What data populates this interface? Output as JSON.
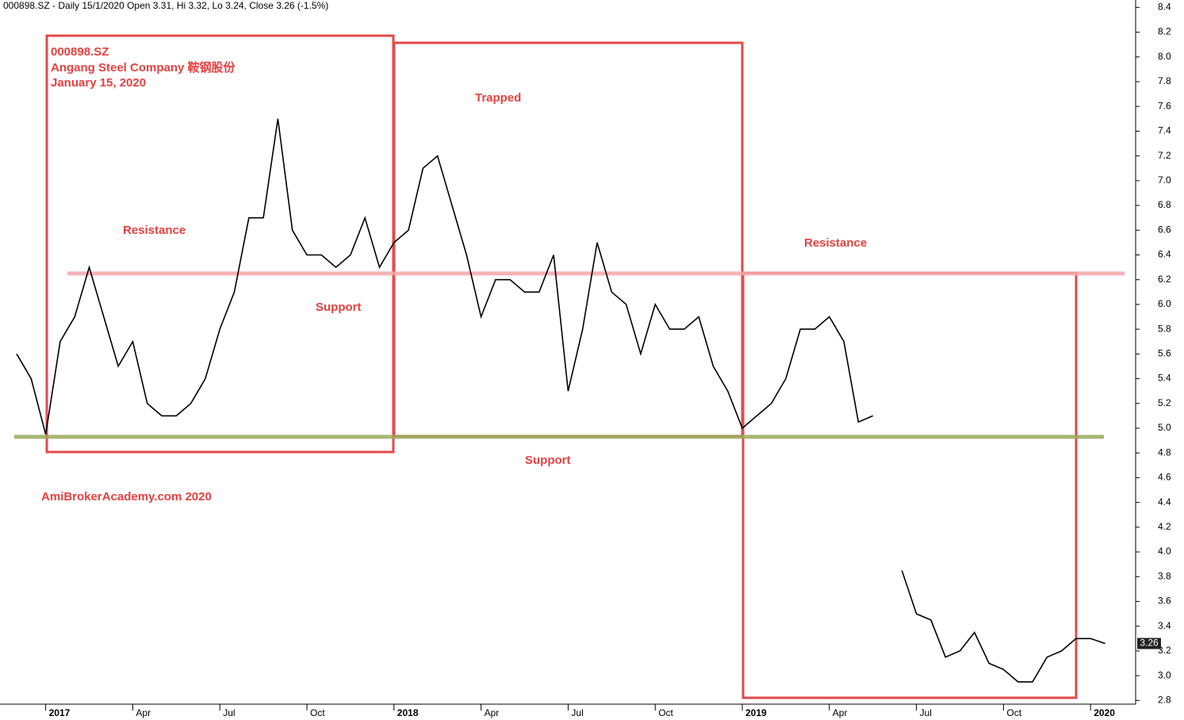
{
  "chart_data": {
    "type": "line",
    "header": "000898.SZ - Daily 15/1/2020 Open 3.31, Hi 3.32, Lo 3.24, Close 3.26 (-1.5%)",
    "annotations": {
      "symbol": "000898.SZ",
      "company": "Angang Steel Company 鞍钢股份",
      "date": "January 15, 2020",
      "resistance_left": "Resistance",
      "support_left": "Support",
      "trapped": "Trapped",
      "support_mid": "Support",
      "resistance_right": "Resistance",
      "watermark": "AmiBrokerAcademy.com   2020"
    },
    "categories": [
      null,
      null,
      "2017",
      null,
      null,
      null,
      null,
      null,
      "Apr",
      null,
      null,
      null,
      null,
      null,
      "Jul",
      null,
      null,
      null,
      null,
      null,
      "Oct",
      null,
      null,
      null,
      null,
      null,
      "2018",
      null,
      null,
      null,
      null,
      null,
      "Apr",
      null,
      null,
      null,
      null,
      null,
      "Jul",
      null,
      null,
      null,
      null,
      null,
      "Oct",
      null,
      null,
      null,
      null,
      null,
      "2019",
      null,
      null,
      null,
      null,
      null,
      "Apr",
      null,
      null,
      null,
      null,
      null,
      "Jul",
      null,
      null,
      null,
      null,
      null,
      "Oct",
      null,
      null,
      null,
      null,
      null,
      "2020",
      null
    ],
    "values": [
      5.6,
      5.4,
      4.95,
      5.7,
      5.9,
      6.3,
      5.9,
      5.5,
      5.7,
      5.2,
      5.1,
      5.1,
      5.2,
      5.4,
      5.8,
      6.1,
      6.7,
      6.7,
      7.5,
      6.6,
      6.4,
      6.4,
      6.3,
      6.4,
      6.7,
      6.3,
      6.5,
      6.6,
      7.1,
      7.2,
      6.8,
      6.4,
      5.9,
      6.2,
      6.2,
      6.1,
      6.1,
      6.4,
      5.3,
      5.8,
      6.5,
      6.1,
      6.0,
      5.6,
      6.0,
      5.8,
      5.8,
      5.9,
      5.5,
      5.3,
      5.0,
      5.1,
      5.2,
      5.4,
      5.8,
      5.8,
      5.9,
      5.7,
      5.05,
      5.1,
      null,
      3.85,
      3.5,
      3.45,
      3.15,
      3.2,
      3.35,
      3.1,
      3.05,
      2.95,
      2.95,
      3.15,
      3.2,
      3.3,
      3.3,
      3.26
    ],
    "color": "#000000",
    "last_price": 3.26,
    "reference_lines": [
      {
        "value": 6.25,
        "color": "#f4a6ab"
      },
      {
        "value": 4.93,
        "color": "#9aab5a"
      }
    ],
    "ylim": [
      2.77,
      8.46
    ],
    "yticks": [
      2.8,
      {
        "value": 3,
        "label": "3.0"
      },
      3.2,
      3.4,
      3.6,
      3.8,
      {
        "value": 4,
        "label": "4.0"
      },
      4.2,
      4.4,
      4.6,
      4.8,
      {
        "value": 5,
        "label": "5.0"
      },
      5.2,
      5.4,
      5.6,
      5.8,
      {
        "value": 6,
        "label": "6.0"
      },
      6.2,
      6.4,
      6.6,
      6.8,
      {
        "value": 7,
        "label": "7.0"
      },
      7.2,
      7.4,
      7.6,
      7.8,
      {
        "value": 8,
        "label": "8.0"
      },
      8.2,
      8.4
    ],
    "grid": false
  }
}
